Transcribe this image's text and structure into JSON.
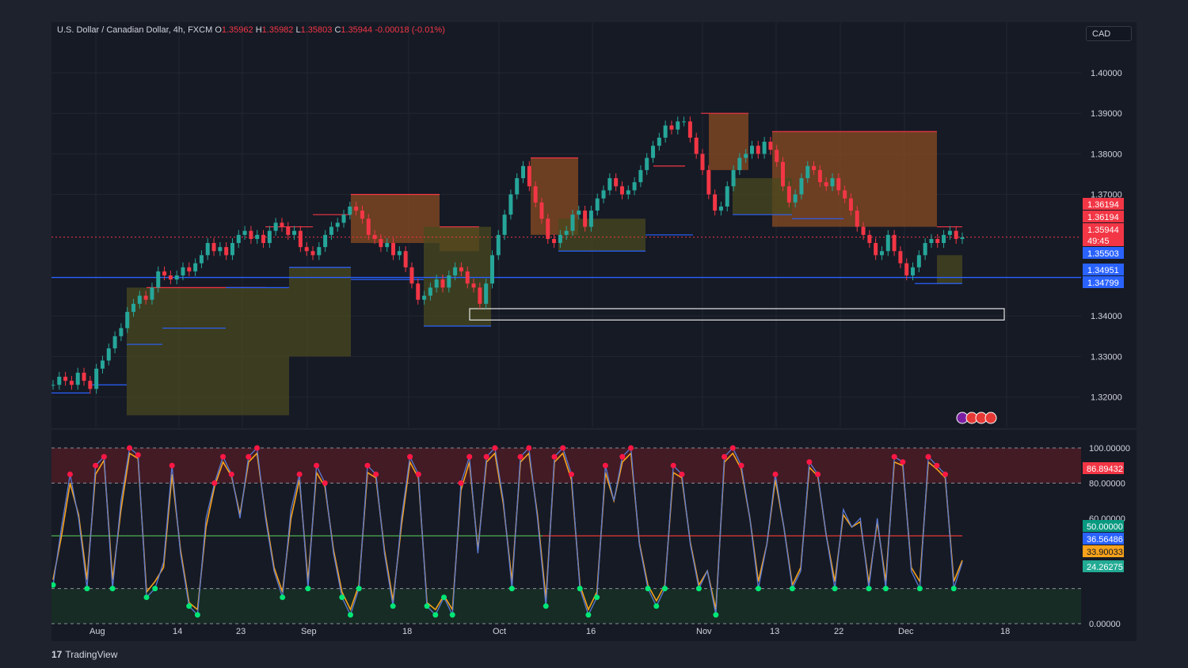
{
  "header": {
    "symbol": "U.S. Dollar / Canadian Dollar, 4h, FXCM",
    "o_label": "O",
    "o": "1.35962",
    "h_label": "H",
    "h": "1.35982",
    "l_label": "L",
    "l": "1.35803",
    "c_label": "C",
    "c": "1.35944",
    "change": "-0.00018 (-0.01%)"
  },
  "currency": "CAD",
  "branding": "TradingView",
  "colors": {
    "background": "#161a25",
    "up": "#26a69a",
    "down": "#f23645",
    "stoch_k": "#5b7bd5",
    "stoch_d": "#f7a21b",
    "resistance_fill": "#8a4b22",
    "support_fill": "#4a4a1f"
  },
  "chart_data": [
    {
      "type": "line",
      "title": "U.S. Dollar / Canadian Dollar, 4h, FXCM",
      "x_ticks": [
        "Aug",
        "14",
        "23",
        "Sep",
        "18",
        "Oct",
        "16",
        "Nov",
        "13",
        "22",
        "Dec",
        "18"
      ],
      "y_ticks": [
        "1.40000",
        "1.39000",
        "1.38000",
        "1.37000",
        "1.34000",
        "1.33000",
        "1.32000"
      ],
      "ylim": [
        1.3125,
        1.4125
      ],
      "grid": true,
      "series": [
        {
          "values": [
            1.323,
            1.325,
            1.324,
            1.323,
            1.326,
            1.324,
            1.322,
            1.327,
            1.329,
            1.332,
            1.335,
            1.337,
            1.341,
            1.343,
            1.345,
            1.344,
            1.347,
            1.351,
            1.35,
            1.349,
            1.35,
            1.352,
            1.351,
            1.353,
            1.355,
            1.358,
            1.356,
            1.357,
            1.355,
            1.358,
            1.36,
            1.361,
            1.359,
            1.36,
            1.358,
            1.361,
            1.363,
            1.362,
            1.36,
            1.361,
            1.357,
            1.356,
            1.355,
            1.357,
            1.36,
            1.362,
            1.363,
            1.365,
            1.367,
            1.366,
            1.364,
            1.36,
            1.359,
            1.357,
            1.358,
            1.355,
            1.356,
            1.352,
            1.348,
            1.344,
            1.345,
            1.347,
            1.349,
            1.347,
            1.35,
            1.352,
            1.351,
            1.348,
            1.347,
            1.343,
            1.348,
            1.355,
            1.36,
            1.365,
            1.37,
            1.374,
            1.377,
            1.372,
            1.368,
            1.364,
            1.359,
            1.358,
            1.36,
            1.361,
            1.365,
            1.366,
            1.362,
            1.366,
            1.369,
            1.371,
            1.374,
            1.372,
            1.37,
            1.371,
            1.373,
            1.376,
            1.379,
            1.382,
            1.384,
            1.387,
            1.386,
            1.388,
            1.388,
            1.384,
            1.38,
            1.376,
            1.37,
            1.366,
            1.367,
            1.372,
            1.376,
            1.379,
            1.38,
            1.382,
            1.38,
            1.383,
            1.381,
            1.378,
            1.372,
            1.368,
            1.37,
            1.374,
            1.377,
            1.376,
            1.373,
            1.372,
            1.374,
            1.371,
            1.369,
            1.366,
            1.362,
            1.36,
            1.358,
            1.355,
            1.356,
            1.36,
            1.356,
            1.353,
            1.35,
            1.352,
            1.355,
            1.358,
            1.359,
            1.358,
            1.36,
            1.361,
            1.359,
            1.3594
          ]
        }
      ],
      "resistance_levels": [
        1.379,
        1.37,
        1.39,
        1.385,
        1.362
      ],
      "support_levels": [
        1.347,
        1.3375,
        1.337,
        1.355
      ],
      "horizontal_line": 1.3495,
      "dashed_line": 1.35944,
      "zone_box": [
        1.339,
        1.3418
      ],
      "price_labels": [
        {
          "value": "1.36194",
          "color": "#f23645"
        },
        {
          "value": "1.36194",
          "color": "#f23645"
        },
        {
          "value": "1.35944",
          "color": "#f23645"
        },
        {
          "value": "49:45",
          "color": "#f23645"
        },
        {
          "value": "1.35503",
          "color": "#2962ff"
        },
        {
          "value": "1.34951",
          "color": "#2962ff"
        },
        {
          "value": "1.34799",
          "color": "#2962ff"
        }
      ]
    },
    {
      "type": "line",
      "y_ticks": [
        "100.00000",
        "80.00000",
        "60.00000",
        "0.00000"
      ],
      "ylim": [
        0,
        100
      ],
      "levels": [
        100,
        80,
        50,
        20,
        0
      ],
      "series": [
        {
          "name": "",
          "values": [
            22,
            55,
            85,
            60,
            20,
            90,
            95,
            20,
            70,
            100,
            96,
            15,
            20,
            35,
            90,
            40,
            10,
            5,
            60,
            80,
            95,
            85,
            60,
            95,
            100,
            60,
            30,
            15,
            65,
            85,
            20,
            90,
            80,
            40,
            15,
            5,
            20,
            90,
            85,
            40,
            10,
            60,
            95,
            85,
            10,
            5,
            15,
            5,
            80,
            95,
            40,
            95,
            100,
            70,
            20,
            95,
            100,
            60,
            10,
            95,
            100,
            85,
            20,
            5,
            15,
            90,
            70,
            95,
            100,
            45,
            20,
            10,
            20,
            90,
            85,
            45,
            20,
            30,
            5,
            95,
            100,
            90,
            60,
            20,
            45,
            85,
            55,
            20,
            30,
            92,
            85,
            50,
            20,
            65,
            55,
            60,
            20,
            60,
            20,
            95,
            92,
            30,
            20,
            95,
            90,
            85,
            20,
            35
          ]
        },
        {
          "name": "",
          "values": [
            25,
            50,
            80,
            62,
            25,
            85,
            93,
            25,
            65,
            97,
            94,
            18,
            24,
            32,
            85,
            42,
            12,
            8,
            55,
            78,
            92,
            84,
            62,
            92,
            97,
            62,
            32,
            18,
            60,
            82,
            24,
            86,
            78,
            42,
            18,
            8,
            22,
            86,
            83,
            42,
            13,
            56,
            92,
            83,
            12,
            8,
            16,
            8,
            76,
            92,
            42,
            92,
            97,
            68,
            24,
            92,
            97,
            62,
            14,
            92,
            97,
            82,
            22,
            8,
            18,
            86,
            70,
            92,
            97,
            46,
            22,
            13,
            22,
            86,
            83,
            46,
            22,
            30,
            8,
            92,
            97,
            88,
            60,
            24,
            45,
            82,
            55,
            22,
            32,
            89,
            84,
            50,
            24,
            62,
            55,
            58,
            23,
            58,
            24,
            92,
            90,
            32,
            24,
            92,
            88,
            83,
            24,
            36
          ]
        }
      ],
      "value_labels": [
        {
          "value": "86.89432",
          "color": "#f23645"
        },
        {
          "value": "50.00000",
          "color": "#089981"
        },
        {
          "value": "36.56486",
          "color": "#2962ff"
        },
        {
          "value": "33.90033",
          "color": "#f7a21b"
        },
        {
          "value": "24.26275",
          "color": "#22ab94"
        }
      ]
    }
  ]
}
